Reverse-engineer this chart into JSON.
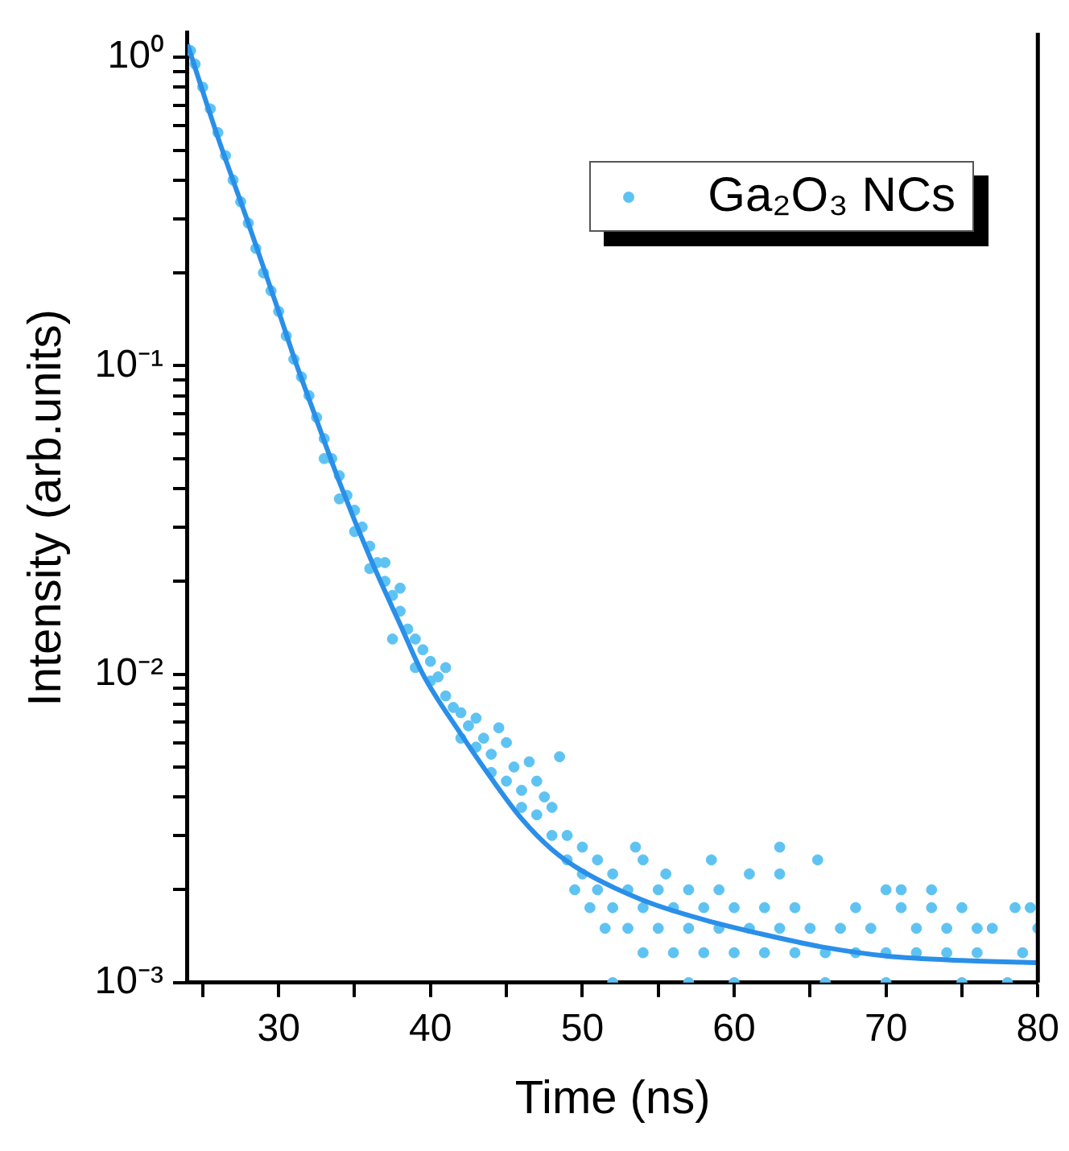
{
  "chart_data": {
    "type": "scatter",
    "xlabel": "Time (ns)",
    "ylabel": "Intensity (arb.units)",
    "log": "y",
    "grid": false,
    "legend": "top right",
    "marker": "circle",
    "xlim": [
      24,
      80
    ],
    "xticks": [
      {
        "value": 25,
        "label": null
      },
      30,
      {
        "value": 35,
        "label": null
      },
      40,
      {
        "value": 45,
        "label": null
      },
      50,
      {
        "value": 55,
        "label": null
      },
      60,
      {
        "value": 65,
        "label": null
      },
      70,
      {
        "value": 75,
        "label": null
      },
      80
    ],
    "ylim": [
      0.001,
      1.2
    ],
    "yticks": [
      {
        "value": 0.001,
        "label": "10⁻³"
      },
      {
        "value": 0.002,
        "label": null
      },
      {
        "value": 0.003,
        "label": null
      },
      {
        "value": 0.004,
        "label": null
      },
      {
        "value": 0.005,
        "label": null
      },
      {
        "value": 0.006,
        "label": null
      },
      {
        "value": 0.007,
        "label": null
      },
      {
        "value": 0.008,
        "label": null
      },
      {
        "value": 0.009,
        "label": null
      },
      {
        "value": 0.01,
        "label": "10⁻²"
      },
      {
        "value": 0.02,
        "label": null
      },
      {
        "value": 0.03,
        "label": null
      },
      {
        "value": 0.04,
        "label": null
      },
      {
        "value": 0.05,
        "label": null
      },
      {
        "value": 0.06,
        "label": null
      },
      {
        "value": 0.07,
        "label": null
      },
      {
        "value": 0.08,
        "label": null
      },
      {
        "value": 0.09,
        "label": null
      },
      {
        "value": 0.1,
        "label": "10⁻¹"
      },
      {
        "value": 0.2,
        "label": null
      },
      {
        "value": 0.3,
        "label": null
      },
      {
        "value": 0.4,
        "label": null
      },
      {
        "value": 0.5,
        "label": null
      },
      {
        "value": 0.6,
        "label": null
      },
      {
        "value": 0.7,
        "label": null
      },
      {
        "value": 0.8,
        "label": null
      },
      {
        "value": 0.9,
        "label": null
      },
      {
        "value": 1,
        "label": "10⁰"
      }
    ],
    "series": [
      {
        "name": "Ga₂O₃ NCs",
        "color": "#5ec3f2",
        "x": [
          24.2,
          24.5,
          25,
          25.5,
          26,
          26.5,
          27,
          27.5,
          28,
          28.5,
          29,
          29.5,
          30,
          30.5,
          31,
          31.5,
          32,
          32.5,
          33,
          33,
          33.5,
          34,
          34,
          34.5,
          35,
          35,
          35.5,
          36,
          36,
          36.5,
          37,
          37,
          37.5,
          37.5,
          38,
          38,
          38.5,
          39,
          39,
          39.5,
          40,
          40,
          40.5,
          41,
          41,
          41.5,
          42,
          42,
          42.5,
          43,
          43,
          43.5,
          44,
          44,
          44.5,
          45,
          45,
          45.5,
          46,
          46,
          46.5,
          47,
          47,
          47.5,
          48,
          48,
          48.5,
          49,
          49,
          49.5,
          50,
          50,
          50.5,
          51,
          51,
          51.5,
          52,
          52,
          52,
          53,
          53,
          53.5,
          54,
          54,
          54,
          55,
          55,
          55.5,
          56,
          56,
          57,
          57,
          57,
          58,
          58,
          58.5,
          59,
          59,
          60,
          60,
          60,
          61,
          61,
          62,
          62,
          63,
          63,
          63,
          64,
          64,
          65,
          65.5,
          66,
          66,
          67,
          68,
          68,
          69,
          70,
          70,
          70,
          71,
          71,
          72,
          72,
          73,
          73,
          74,
          74,
          75,
          75,
          76,
          76,
          77,
          78,
          78.5,
          79,
          79.5,
          80
        ],
        "values": [
          1.05,
          0.95,
          0.8,
          0.68,
          0.57,
          0.48,
          0.4,
          0.34,
          0.29,
          0.24,
          0.2,
          0.175,
          0.15,
          0.125,
          0.105,
          0.092,
          0.08,
          0.068,
          0.058,
          0.05,
          0.05,
          0.044,
          0.037,
          0.038,
          0.034,
          0.029,
          0.03,
          0.026,
          0.022,
          0.023,
          0.02,
          0.023,
          0.018,
          0.013,
          0.016,
          0.019,
          0.014,
          0.013,
          0.0105,
          0.012,
          0.011,
          0.0095,
          0.0098,
          0.0085,
          0.0105,
          0.0078,
          0.0075,
          0.0062,
          0.0068,
          0.0072,
          0.0058,
          0.0062,
          0.0055,
          0.0048,
          0.0067,
          0.006,
          0.0045,
          0.005,
          0.0042,
          0.0037,
          0.0052,
          0.0045,
          0.0035,
          0.004,
          0.0037,
          0.003,
          0.0054,
          0.003,
          0.0025,
          0.002,
          0.00275,
          0.00225,
          0.00175,
          0.0025,
          0.002,
          0.0015,
          0.00225,
          0.00175,
          0.001,
          0.002,
          0.0015,
          0.00275,
          0.0025,
          0.00175,
          0.00125,
          0.002,
          0.0015,
          0.00225,
          0.00175,
          0.00125,
          0.002,
          0.0015,
          0.001,
          0.00175,
          0.00125,
          0.0025,
          0.0015,
          0.002,
          0.00175,
          0.00125,
          0.001,
          0.0015,
          0.00225,
          0.00175,
          0.00125,
          0.00275,
          0.0015,
          0.00225,
          0.00175,
          0.00125,
          0.0015,
          0.0025,
          0.00125,
          0.001,
          0.0015,
          0.00175,
          0.00125,
          0.0015,
          0.002,
          0.00125,
          0.001,
          0.002,
          0.00175,
          0.00125,
          0.0015,
          0.002,
          0.00175,
          0.00125,
          0.0015,
          0.00175,
          0.001,
          0.00125,
          0.0015,
          0.0015,
          0.001,
          0.00175,
          0.00125,
          0.00175,
          0.0015
        ]
      },
      {
        "type": "line",
        "color": "#2a8fe8",
        "marker": "none",
        "x": [
          24,
          26,
          28,
          30,
          31.2,
          32,
          34,
          36,
          38,
          39.5,
          42,
          44,
          46,
          48,
          50,
          54,
          58,
          62,
          66,
          70,
          75,
          80
        ],
        "values": [
          1.1,
          0.55,
          0.29,
          0.15,
          0.1,
          0.078,
          0.042,
          0.024,
          0.0145,
          0.01,
          0.0064,
          0.0046,
          0.0034,
          0.0027,
          0.0023,
          0.00185,
          0.0016,
          0.00143,
          0.0013,
          0.00122,
          0.00118,
          0.00116
        ]
      }
    ]
  }
}
